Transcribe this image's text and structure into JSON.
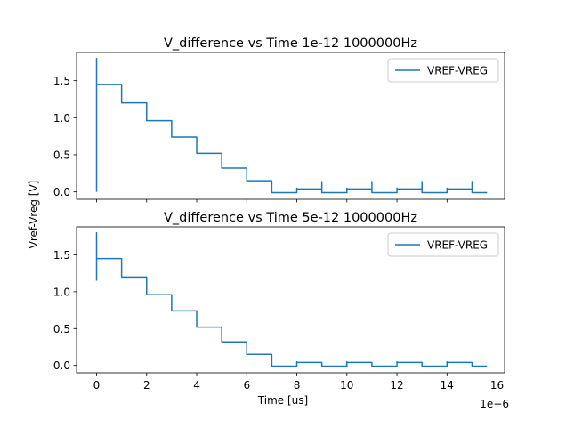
{
  "figure": {
    "ylabel": "Vref-Vreg [V]",
    "xlabel": "Time [us]",
    "x_offset_text": "1e−6"
  },
  "chart_data": [
    {
      "type": "line",
      "title": "V_difference vs Time 1e-12 1000000Hz",
      "xlabel": "",
      "ylabel": "",
      "xlim": [
        -8e-07,
        1.63e-05
      ],
      "ylim": [
        -0.1,
        1.88
      ],
      "xticks": [
        0,
        2e-06,
        4e-06,
        6e-06,
        8e-06,
        1e-05,
        1.2e-05,
        1.4e-05,
        1.6e-05
      ],
      "xtick_labels": [],
      "yticks": [
        0.0,
        0.5,
        1.0,
        1.5
      ],
      "ytick_labels": [
        "0.0",
        "0.5",
        "1.0",
        "1.5"
      ],
      "legend": "top-right",
      "grid": false,
      "series": [
        {
          "name": "VREF-VREG",
          "color": "#1f77b4",
          "x": [
            0,
            0,
            0,
            0,
            0,
            0,
            1e-06,
            1e-06,
            2e-06,
            2e-06,
            3e-06,
            3e-06,
            4e-06,
            4e-06,
            5e-06,
            5e-06,
            6e-06,
            6e-06,
            7e-06,
            7e-06,
            8e-06,
            8e-06,
            8e-06,
            9e-06,
            9e-06,
            9e-06,
            1e-05,
            1e-05,
            1e-05,
            1.1e-05,
            1.1e-05,
            1.1e-05,
            1.2e-05,
            1.2e-05,
            1.2e-05,
            1.3e-05,
            1.3e-05,
            1.3e-05,
            1.4e-05,
            1.4e-05,
            1.4e-05,
            1.5e-05,
            1.5e-05,
            1.5e-05,
            1.56e-05
          ],
          "y": [
            0.0,
            0.16,
            1.8,
            0.2,
            1.45,
            1.45,
            1.45,
            1.2,
            1.2,
            0.96,
            0.96,
            0.74,
            0.74,
            0.52,
            0.52,
            0.32,
            0.32,
            0.15,
            0.15,
            -0.01,
            -0.01,
            0.05,
            0.04,
            0.04,
            0.14,
            -0.01,
            -0.01,
            0.05,
            0.04,
            0.04,
            0.14,
            -0.01,
            -0.01,
            0.05,
            0.04,
            0.04,
            0.14,
            -0.01,
            -0.01,
            0.05,
            0.04,
            0.04,
            0.14,
            -0.01,
            -0.01
          ]
        }
      ]
    },
    {
      "type": "line",
      "title": "V_difference vs Time 5e-12 1000000Hz",
      "xlabel": "Time [us]",
      "ylabel": "",
      "xlim": [
        -8e-07,
        1.63e-05
      ],
      "ylim": [
        -0.1,
        1.88
      ],
      "xticks": [
        0,
        2e-06,
        4e-06,
        6e-06,
        8e-06,
        1e-05,
        1.2e-05,
        1.4e-05,
        1.6e-05
      ],
      "xtick_labels": [
        "0",
        "2",
        "4",
        "6",
        "8",
        "10",
        "12",
        "14",
        "16"
      ],
      "yticks": [
        0.0,
        0.5,
        1.0,
        1.5
      ],
      "ytick_labels": [
        "0.0",
        "0.5",
        "1.0",
        "1.5"
      ],
      "legend": "top-right",
      "grid": false,
      "series": [
        {
          "name": "VREF-VREG",
          "color": "#1f77b4",
          "x": [
            0,
            0,
            0,
            0,
            1e-06,
            1e-06,
            2e-06,
            2e-06,
            3e-06,
            3e-06,
            4e-06,
            4e-06,
            5e-06,
            5e-06,
            6e-06,
            6e-06,
            7e-06,
            7e-06,
            8e-06,
            8e-06,
            8e-06,
            9e-06,
            9e-06,
            1e-05,
            1e-05,
            1e-05,
            1.1e-05,
            1.1e-05,
            1.2e-05,
            1.2e-05,
            1.2e-05,
            1.3e-05,
            1.3e-05,
            1.4e-05,
            1.4e-05,
            1.4e-05,
            1.5e-05,
            1.5e-05,
            1.56e-05
          ],
          "y": [
            1.15,
            1.8,
            1.2,
            1.45,
            1.45,
            1.2,
            1.2,
            0.96,
            0.96,
            0.74,
            0.74,
            0.52,
            0.52,
            0.32,
            0.32,
            0.15,
            0.15,
            -0.01,
            -0.01,
            0.05,
            0.04,
            0.04,
            -0.01,
            -0.01,
            0.05,
            0.04,
            0.04,
            -0.01,
            -0.01,
            0.05,
            0.04,
            0.04,
            -0.01,
            -0.01,
            0.05,
            0.04,
            0.04,
            -0.01,
            -0.01
          ]
        }
      ]
    }
  ]
}
